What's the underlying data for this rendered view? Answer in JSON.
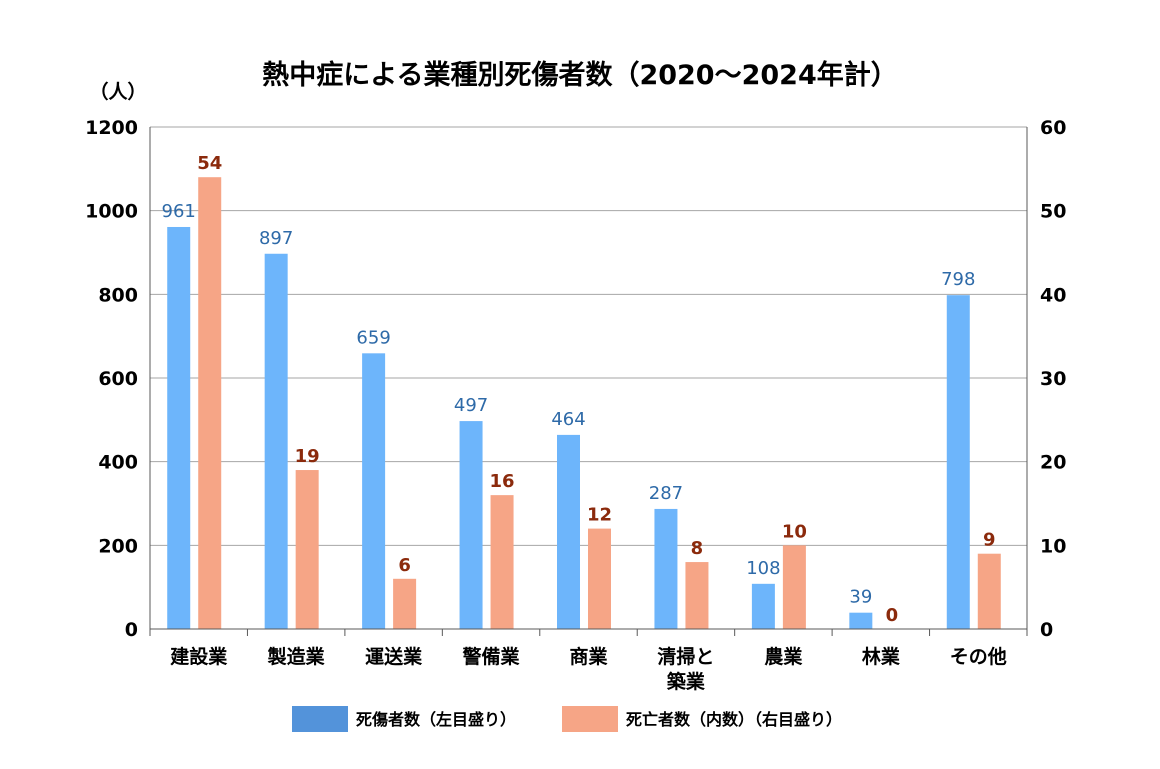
{
  "chart_data": {
    "type": "bar",
    "title": "熱中症による業種別死傷者数（2020～2024年計）",
    "y_unit_label": "（人）",
    "categories": [
      [
        "建設業"
      ],
      [
        "製造業"
      ],
      [
        "運送業"
      ],
      [
        "警備業"
      ],
      [
        "商業"
      ],
      [
        "清掃と",
        "築業"
      ],
      [
        "農業"
      ],
      [
        "林業"
      ],
      [
        "その他"
      ]
    ],
    "series": [
      {
        "name": "死傷者数（左目盛り）",
        "axis": "left",
        "color": "#6db5fb",
        "legend_color": "#5393da",
        "label_color": "#2e6aa8",
        "values": [
          961,
          897,
          659,
          497,
          464,
          287,
          108,
          39,
          798
        ],
        "labels": [
          "961",
          "897",
          "659",
          "497",
          "464",
          "287",
          "108",
          "39",
          "798"
        ]
      },
      {
        "name": "死亡者数（内数）（右目盛り）",
        "axis": "right",
        "color": "#f6a586",
        "legend_color": "#f6a586",
        "label_color": "#8b2a0c",
        "values": [
          54,
          19,
          6,
          16,
          12,
          8,
          10,
          0,
          9
        ],
        "labels": [
          "54",
          "19",
          "6",
          "16",
          "12",
          "8",
          "10",
          "0",
          "9"
        ]
      }
    ],
    "y_left": {
      "min": 0,
      "max": 1200,
      "ticks": [
        "0",
        "200",
        "400",
        "600",
        "800",
        "1000",
        "1200"
      ]
    },
    "y_right": {
      "min": 0,
      "max": 60,
      "ticks": [
        "0",
        "10",
        "20",
        "30",
        "40",
        "50",
        "60"
      ]
    },
    "grid": true,
    "legend_position": "bottom-center"
  }
}
